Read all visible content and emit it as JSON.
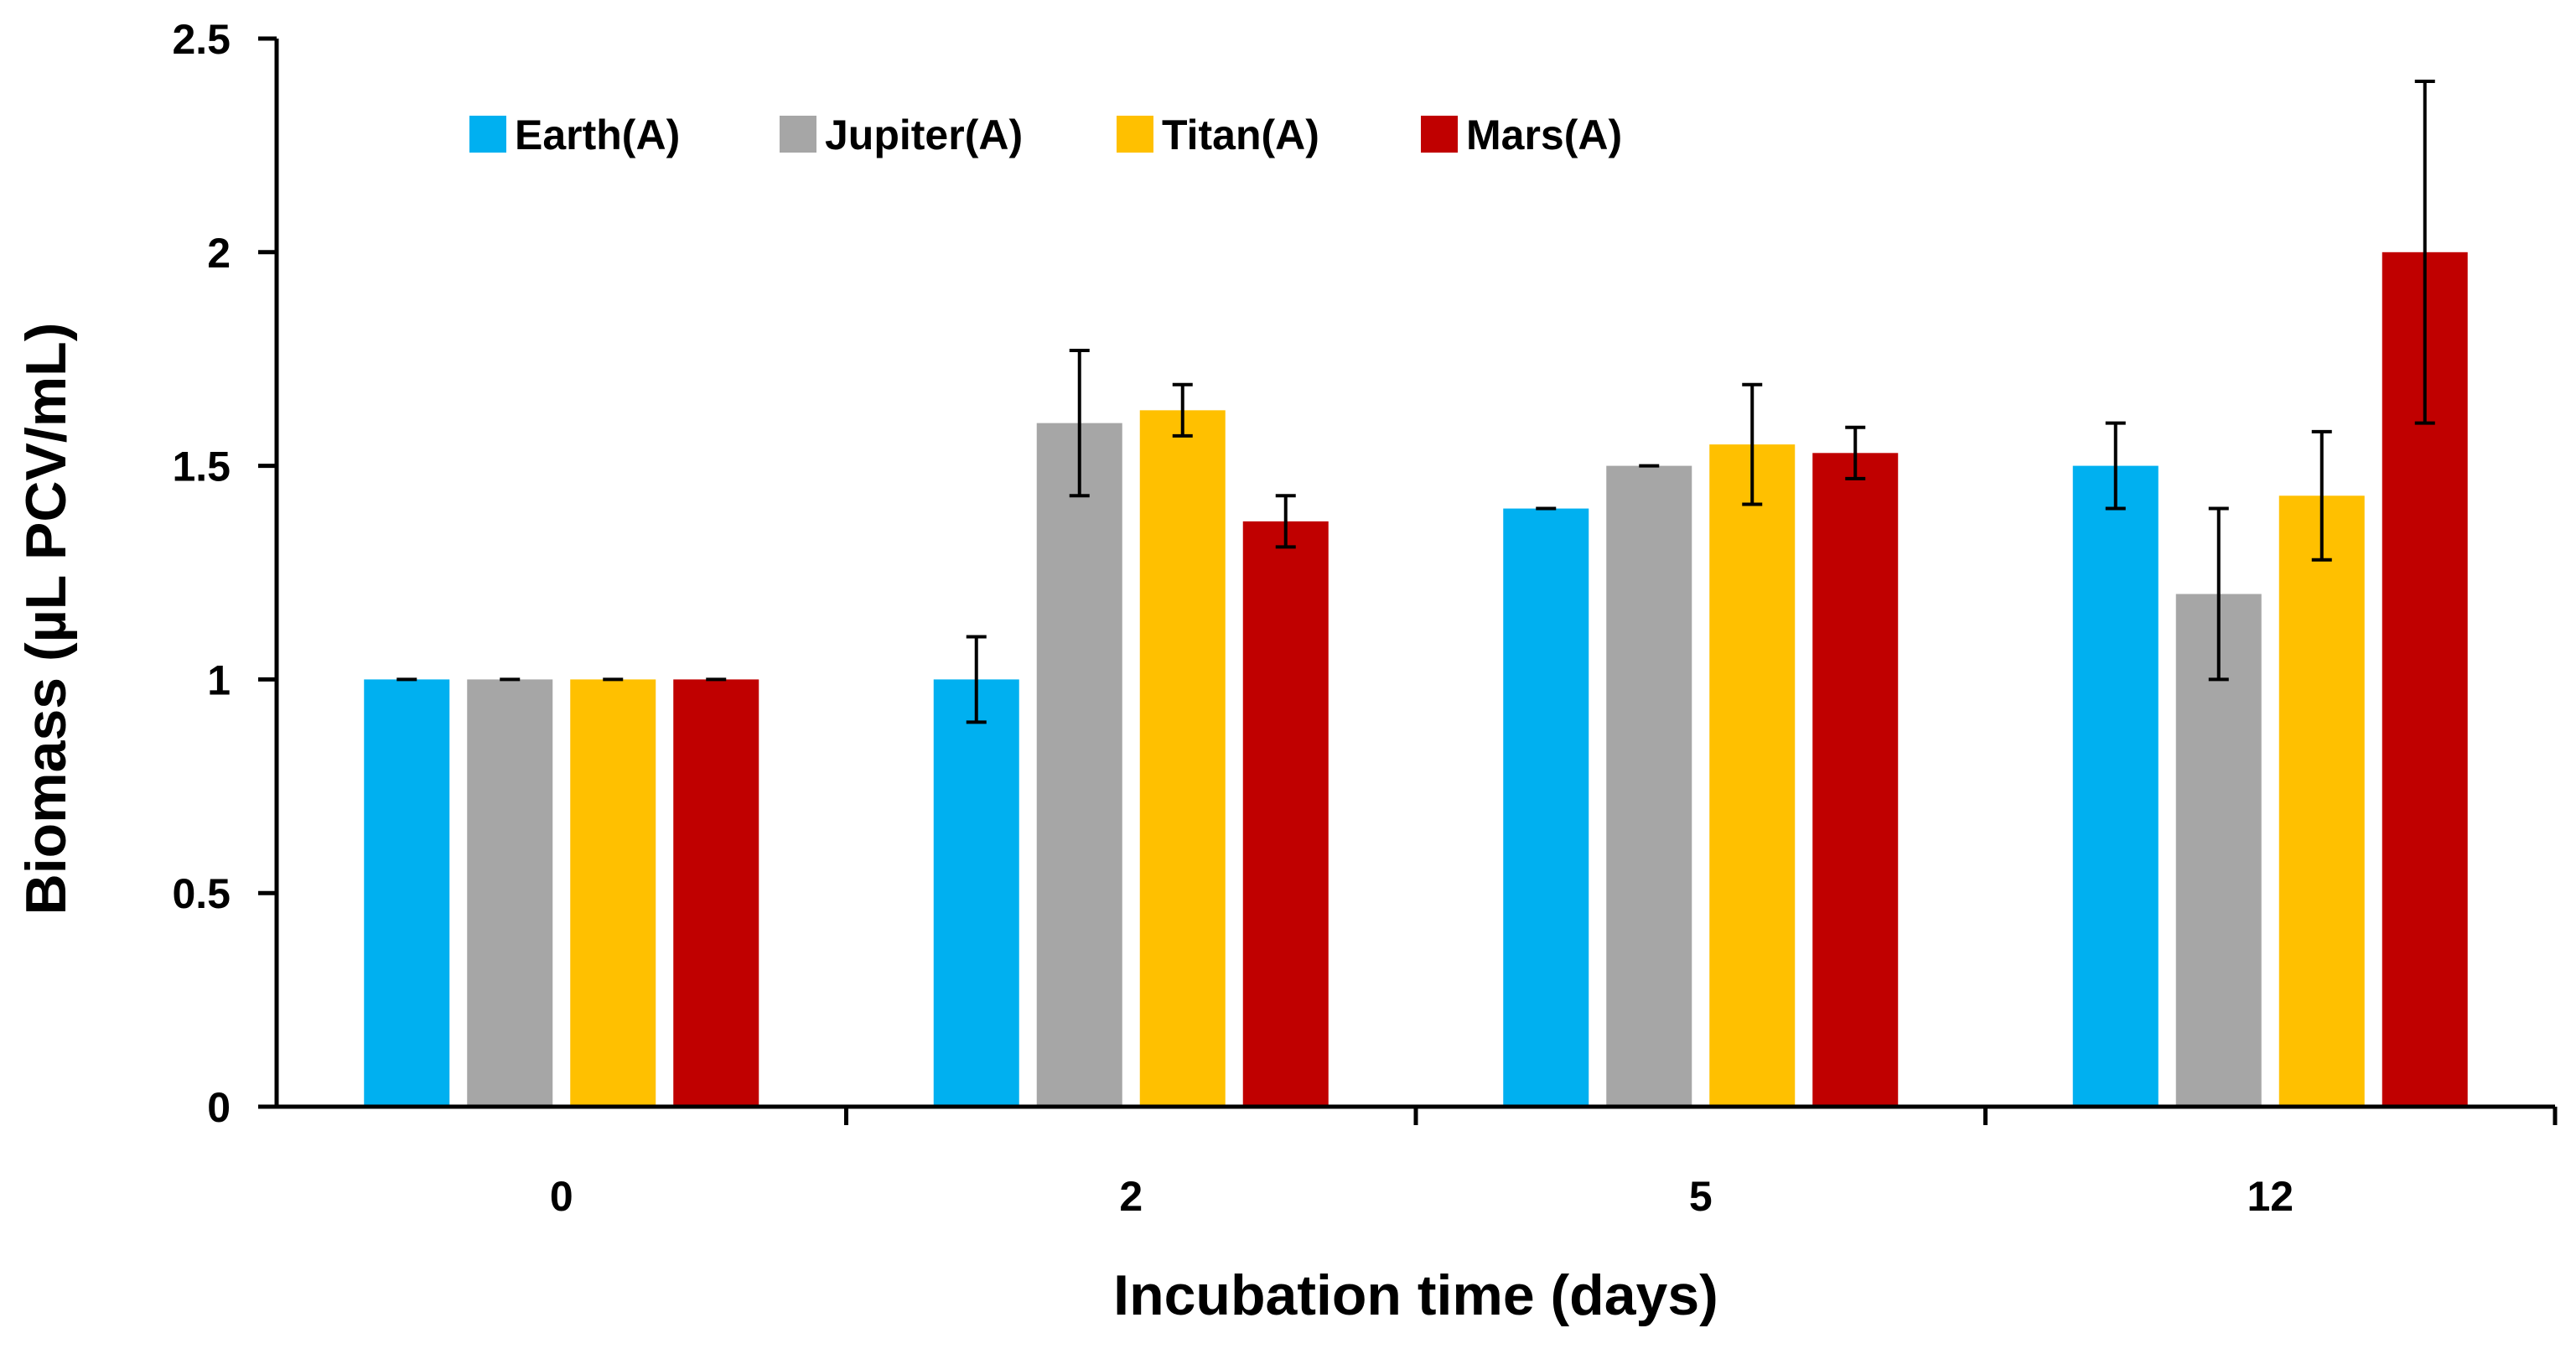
{
  "chart_data": {
    "type": "bar",
    "title": "",
    "xlabel": "Incubation time (days)",
    "ylabel": "Biomass (µL PCV/mL)",
    "ylim": [
      0,
      2.5
    ],
    "y_ticks": [
      {
        "value": 0,
        "label": "0"
      },
      {
        "value": 0.5,
        "label": "0.5"
      },
      {
        "value": 1,
        "label": "1"
      },
      {
        "value": 1.5,
        "label": "1.5"
      },
      {
        "value": 2,
        "label": "2"
      },
      {
        "value": 2.5,
        "label": "2.5"
      }
    ],
    "categories": [
      "0",
      "2",
      "5",
      "12"
    ],
    "grid": false,
    "legend_position": "top",
    "series": [
      {
        "name": "Earth(A)",
        "color": "#00B0F0",
        "values": [
          1.0,
          1.0,
          1.4,
          1.5
        ],
        "errors": [
          0.0,
          0.1,
          0.0,
          0.1
        ]
      },
      {
        "name": "Jupiter(A)",
        "color": "#A6A6A6",
        "values": [
          1.0,
          1.6,
          1.5,
          1.2
        ],
        "errors": [
          0.0,
          0.17,
          0.0,
          0.2
        ]
      },
      {
        "name": "Titan(A)",
        "color": "#FFC000",
        "values": [
          1.0,
          1.63,
          1.55,
          1.43
        ],
        "errors": [
          0.0,
          0.06,
          0.14,
          0.15
        ]
      },
      {
        "name": "Mars(A)",
        "color": "#C00000",
        "values": [
          1.0,
          1.37,
          1.53,
          2.0
        ],
        "errors": [
          0.0,
          0.06,
          0.06,
          0.4
        ]
      }
    ]
  }
}
